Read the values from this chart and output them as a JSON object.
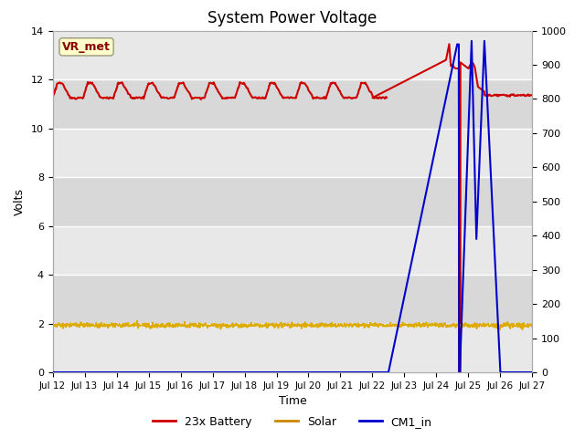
{
  "title": "System Power Voltage",
  "xlabel": "Time",
  "ylabel": "Volts",
  "background_color": "#ffffff",
  "plot_bg_color": "#e8e8e8",
  "grid_stripe_light": "#e8e8e8",
  "grid_stripe_dark": "#d8d8d8",
  "xlim_days": [
    0,
    15
  ],
  "ylim_left": [
    0,
    14
  ],
  "ylim_right": [
    0,
    1000
  ],
  "vr_met_label": "VR_met",
  "vr_met_bg": "#ffffcc",
  "vr_met_border": "#aaaaaa",
  "vr_met_text_color": "#880000",
  "legend_entries": [
    "23x Battery",
    "Solar",
    "CM1_in"
  ],
  "legend_colors": [
    "#cc0000",
    "#cc8800",
    "#0000cc"
  ],
  "battery_color": "#cc0000",
  "solar_color": "#ddaa00",
  "cm1_color": "#0000cc",
  "figsize": [
    6.4,
    4.8
  ],
  "dpi": 100
}
